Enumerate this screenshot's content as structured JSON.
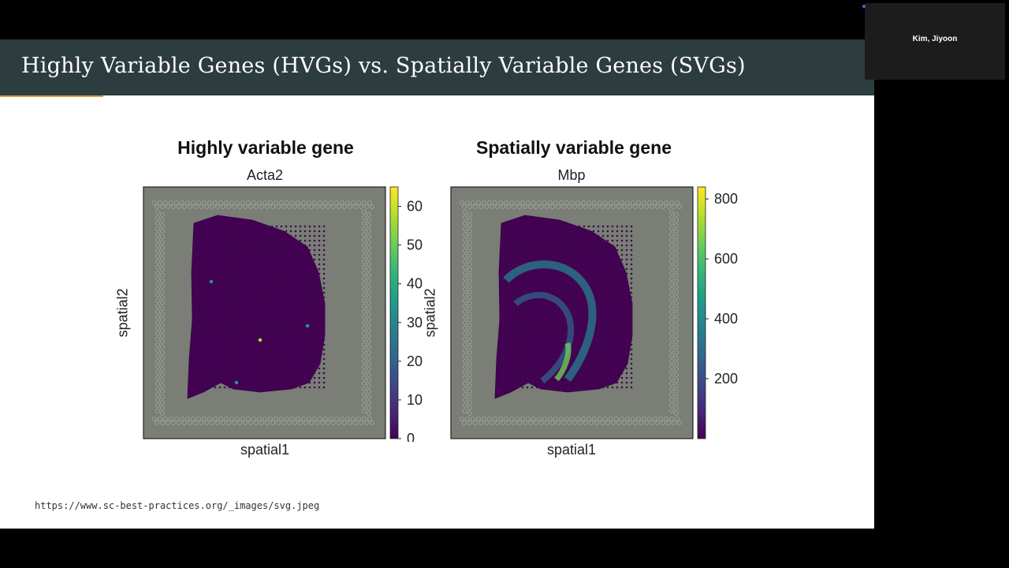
{
  "slide": {
    "title": "Highly Variable Genes (HVGs) vs. Spatially Variable Genes (SVGs)",
    "source_url": "https://www.sc-best-practices.org/_images/svg.jpeg"
  },
  "video_call": {
    "participant_name": "Kim, Jiyoon"
  },
  "colors": {
    "header_bg": "#2c3c3f",
    "accent": "#d2a23c",
    "tissue_background": "#7a7e76",
    "viridis_low": "#440154",
    "viridis_high": "#fde725"
  },
  "chart_data": [
    {
      "type": "heatmap",
      "heading": "Highly variable gene",
      "title": "Acta2",
      "xlabel": "spatial1",
      "ylabel": "spatial2",
      "colorbar": {
        "colormap": "viridis",
        "ticks": [
          0,
          10,
          20,
          30,
          40,
          50,
          60
        ],
        "range": [
          0,
          65
        ]
      },
      "pattern": "uniformly low expression with a few scattered bright spots"
    },
    {
      "type": "heatmap",
      "heading": "Spatially variable gene",
      "title": "Mbp",
      "xlabel": "spatial1",
      "ylabel": "spatial2",
      "colorbar": {
        "colormap": "viridis",
        "ticks": [
          200,
          400,
          600,
          800
        ],
        "range": [
          0,
          840
        ]
      },
      "pattern": "high expression along white matter tracts (corpus callosum arc)"
    }
  ]
}
